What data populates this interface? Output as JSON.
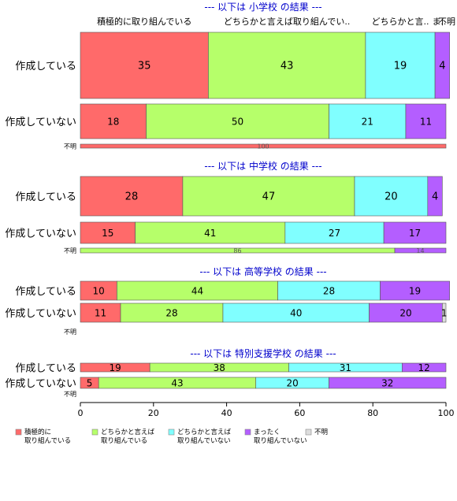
{
  "chart_data": {
    "type": "bar",
    "orientation": "horizontal",
    "stacked": "percent",
    "xlim": [
      0,
      100
    ],
    "x_ticks": [
      0,
      20,
      40,
      60,
      80,
      100
    ],
    "colors": [
      "#FF6A6A",
      "#B6FF6A",
      "#80FFFF",
      "#B45EFF",
      "#DDDDDD"
    ],
    "categories": [
      "積極的に取り組んでいる",
      "どちらかと言えば取り組んでいる",
      "どちらかと言えば取り組んでいない",
      "まったく取り組んでいない",
      "不明"
    ],
    "top_labels": [
      "積極的に取り組んでいる",
      "どちらかと言えば取り組んでい..",
      "どちらかと言..",
      "ま..",
      "不明"
    ],
    "legend": {
      "position": "bottom",
      "entries": [
        [
          "積極的に",
          "取り組んでいる"
        ],
        [
          "どちらかと言えば",
          "取り組んでいる"
        ],
        [
          "どちらかと言えば",
          "取り組んでいない"
        ],
        [
          "まったく",
          "取り組んでいない"
        ],
        [
          "不明"
        ]
      ]
    },
    "panels": [
      {
        "title": "--- 以下は 小学校 の結果 ---",
        "rows": [
          {
            "label": "作成している",
            "values": [
              35,
              43,
              19,
              4,
              0
            ]
          },
          {
            "label": "作成していない",
            "values": [
              18,
              50,
              21,
              11,
              0
            ]
          },
          {
            "label": "不明",
            "values": [
              100,
              0,
              0,
              0,
              0
            ]
          }
        ]
      },
      {
        "title": "--- 以下は 中学校 の結果 ---",
        "rows": [
          {
            "label": "作成している",
            "values": [
              28,
              47,
              20,
              4,
              0
            ]
          },
          {
            "label": "作成していない",
            "values": [
              15,
              41,
              27,
              17,
              0
            ]
          },
          {
            "label": "不明",
            "values": [
              0,
              86,
              0,
              14,
              0
            ]
          }
        ]
      },
      {
        "title": "--- 以下は 高等学校 の結果 ---",
        "rows": [
          {
            "label": "作成している",
            "values": [
              10,
              44,
              28,
              19,
              0
            ]
          },
          {
            "label": "作成していない",
            "values": [
              11,
              28,
              40,
              20,
              1
            ]
          },
          {
            "label": "不明",
            "values": [
              0,
              0,
              0,
              0,
              0
            ]
          }
        ]
      },
      {
        "title": "--- 以下は 特別支援学校 の結果 ---",
        "rows": [
          {
            "label": "作成している",
            "values": [
              19,
              38,
              31,
              12,
              0
            ]
          },
          {
            "label": "作成していない",
            "values": [
              5,
              43,
              20,
              32,
              0
            ]
          },
          {
            "label": "不明",
            "values": [
              0,
              0,
              0,
              0,
              0
            ]
          }
        ]
      }
    ]
  }
}
